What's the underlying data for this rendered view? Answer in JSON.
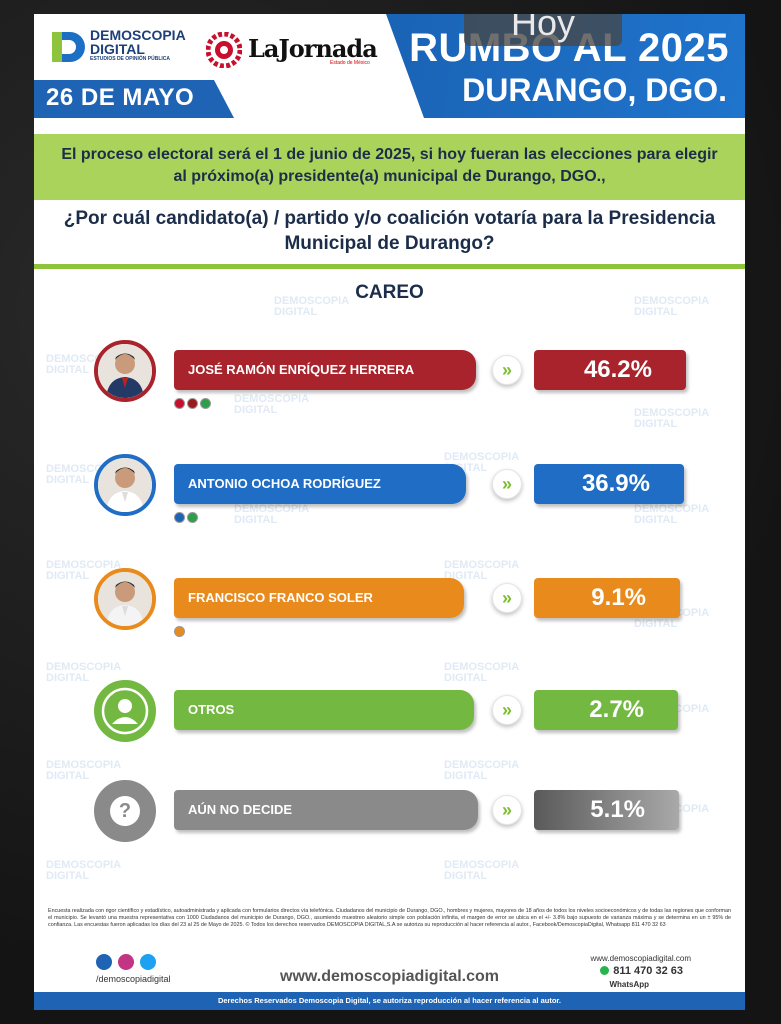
{
  "header": {
    "overlay_label": "Hoy",
    "pollster_name": "DEMOSCOPIA DIGITAL",
    "pollster_tagline": "ESTUDIOS DE OPINIÓN PÚBLICA",
    "partner_name": "LaJornada",
    "partner_sub": "Estado de México",
    "date": "26 DE MAYO",
    "title": "RUMBO AL 2025",
    "subtitle": "DURANGO, DGO."
  },
  "intro_text": "El proceso electoral será el 1 de junio de 2025, si hoy fueran las elecciones para elegir al próximo(a) presidente(a) municipal de Durango, DGO.,",
  "question": "¿Por cuál candidato(a) / partido y/o coalición votaría para la Presidencia Municipal de Durango?",
  "watermark": {
    "line1": "DEMOSCOPIA",
    "line2": "DIGITAL"
  },
  "chart_data": {
    "type": "bar",
    "title": "CAREO",
    "categories": [
      "JOSÉ RAMÓN ENRÍQUEZ HERRERA",
      "ANTONIO OCHOA RODRÍGUEZ",
      "FRANCISCO FRANCO SOLER",
      "OTROS",
      "AÚN NO DECIDE"
    ],
    "values": [
      46.2,
      36.9,
      9.1,
      2.7,
      5.1
    ],
    "labels": [
      "46.2%",
      "36.9%",
      "9.1%",
      "2.7%",
      "5.1%"
    ],
    "unit": "%",
    "colors": [
      "#a8232b",
      "#1f6dc4",
      "#e98a1c",
      "#73b841",
      "#8a8a8a"
    ]
  },
  "arrow_symbol": "»",
  "unknown_symbol": "?",
  "footer": {
    "disclaimer": "Encuesta realizada con rigor científico y estadístico, autoadministrada y aplicada con formularios directos vía telefónica. Ciudadanos del municipio de Durango, DGO., hombres y mujeres, mayores de 18 años de todos los niveles socioeconómicos y de todas las regiones que conforman el municipio. Se levantó una muestra representativa con 1000 Ciudadanos del municipio de Durango, DGO., asumiendo muestreo aleatorio simple con población infinita, el margen de error se ubica en el +/- 3.8% bajo supuesto de varianza máxima y se determina en un ± 95% de confianza. Las encuestas fueron aplicadas los días del 23 al 25 de Mayo de 2025. © Todos los derechos reservados DEMOSCOPIA DIGITAL,S.A se autoriza su reproducción al hacer referencia al autor., Facebook/DemoscopiaDigital, Whatsapp 811 470 32 63",
    "social_handle": "/demoscopiadigital",
    "website": "www.demoscopiadigital.com",
    "whatsapp_web": "www.demoscopiadigital.com",
    "phone": "811 470 32 63",
    "whatsapp_label": "WhatsApp",
    "rights": "Derechos Reservados Demoscopia Digital, se autoriza reproducción al hacer referencia al autor."
  }
}
